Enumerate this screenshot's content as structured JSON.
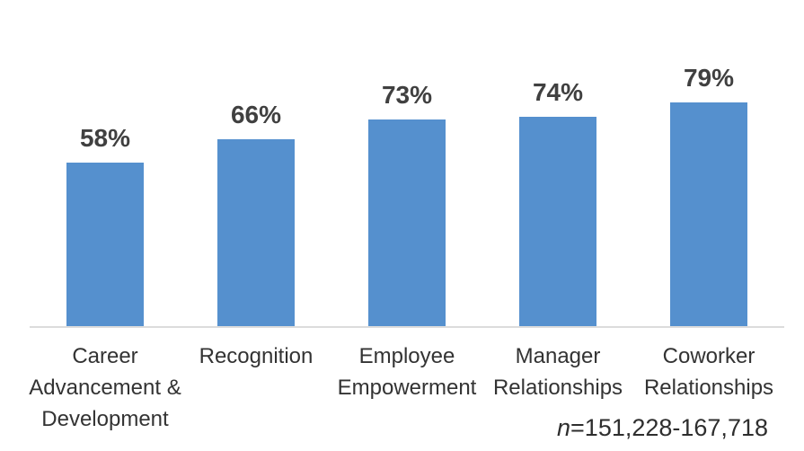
{
  "chart_data": {
    "type": "bar",
    "categories": [
      "Career Advancement & Development",
      "Recognition",
      "Employee Empowerment",
      "Manager Relationships",
      "Coworker Relationships"
    ],
    "values": [
      58,
      66,
      73,
      74,
      79
    ],
    "value_labels": [
      "58%",
      "66%",
      "73%",
      "74%",
      "79%"
    ],
    "title": "",
    "xlabel": "",
    "ylabel": "",
    "ylim": [
      0,
      100
    ],
    "grid": false,
    "legend": false,
    "bar_color": "#5590ce",
    "value_label_color": "#404040",
    "category_label_color": "#333333",
    "axis_line_color": "#dcdcdc",
    "annotation": "n=151,228-167,718"
  },
  "note": {
    "n": "n",
    "value": "=151,228-167,718"
  }
}
